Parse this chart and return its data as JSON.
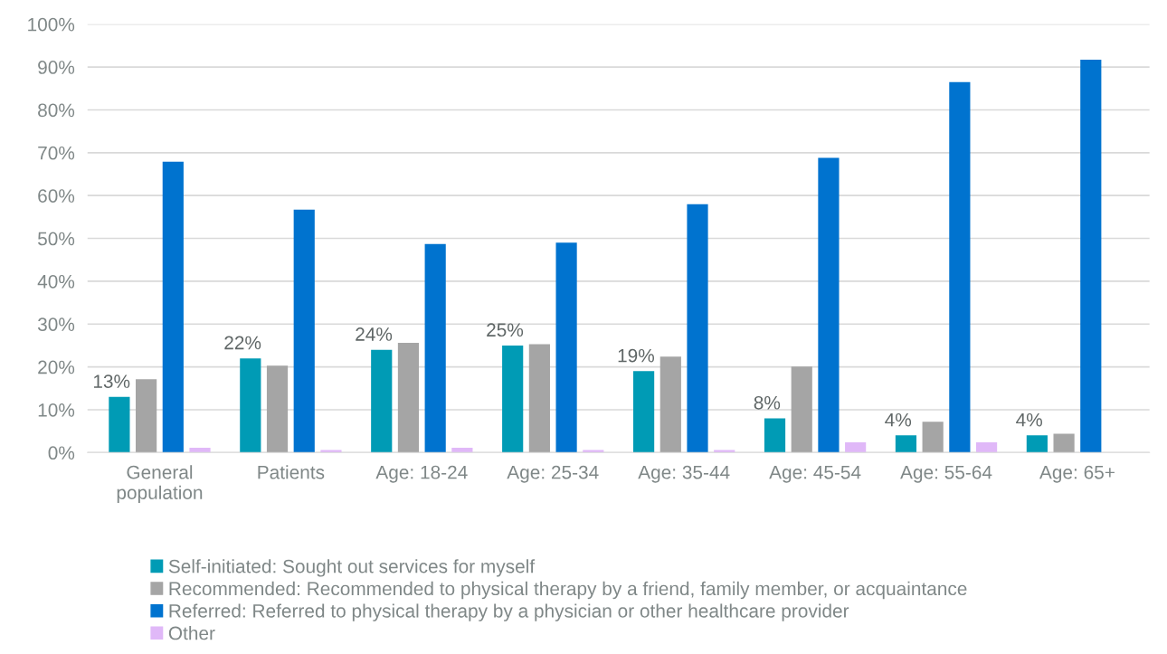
{
  "chart_data": {
    "type": "bar",
    "categories": [
      "General\npopulation",
      "Patients",
      "Age: 18-24",
      "Age: 25-34",
      "Age: 35-44",
      "Age: 45-54",
      "Age: 55-64",
      "Age: 65+"
    ],
    "series": [
      {
        "name": "Self-initiated: Sought out services for myself",
        "color": "#009bb5",
        "values": [
          13,
          22,
          24,
          25,
          19,
          8,
          4,
          4
        ],
        "value_labels": [
          "13%",
          "22%",
          "24%",
          "25%",
          "19%",
          "8%",
          "4%",
          "4%"
        ]
      },
      {
        "name": "Recommended: Recommended to physical therapy by a friend, family member, or acquaintance",
        "color": "#a5a5a5",
        "values": [
          17.1,
          20.3,
          25.6,
          25.3,
          22.4,
          20.1,
          7.2,
          4.4
        ]
      },
      {
        "name": "Referred: Referred to physical therapy by a physician or other healthcare provider",
        "color": "#0073cf",
        "values": [
          67.9,
          56.7,
          48.7,
          49.0,
          58.0,
          68.8,
          86.5,
          91.7
        ]
      },
      {
        "name": "Other",
        "color": "#e0b8f8",
        "values": [
          1.1,
          0.6,
          1.1,
          0.6,
          0.6,
          2.4,
          2.4,
          null
        ]
      }
    ],
    "ylim": [
      0,
      100
    ],
    "yticks": [
      {
        "value": 0,
        "label": "0%"
      },
      {
        "value": 10,
        "label": "10%"
      },
      {
        "value": 20,
        "label": "20%"
      },
      {
        "value": 30,
        "label": "30%"
      },
      {
        "value": 40,
        "label": "40%"
      },
      {
        "value": 50,
        "label": "50%"
      },
      {
        "value": 60,
        "label": "60%"
      },
      {
        "value": 70,
        "label": "70%"
      },
      {
        "value": 80,
        "label": "80%"
      },
      {
        "value": 90,
        "label": "90%"
      },
      {
        "value": 100,
        "label": "100%"
      }
    ],
    "grid": "y",
    "legend": "bottom"
  }
}
